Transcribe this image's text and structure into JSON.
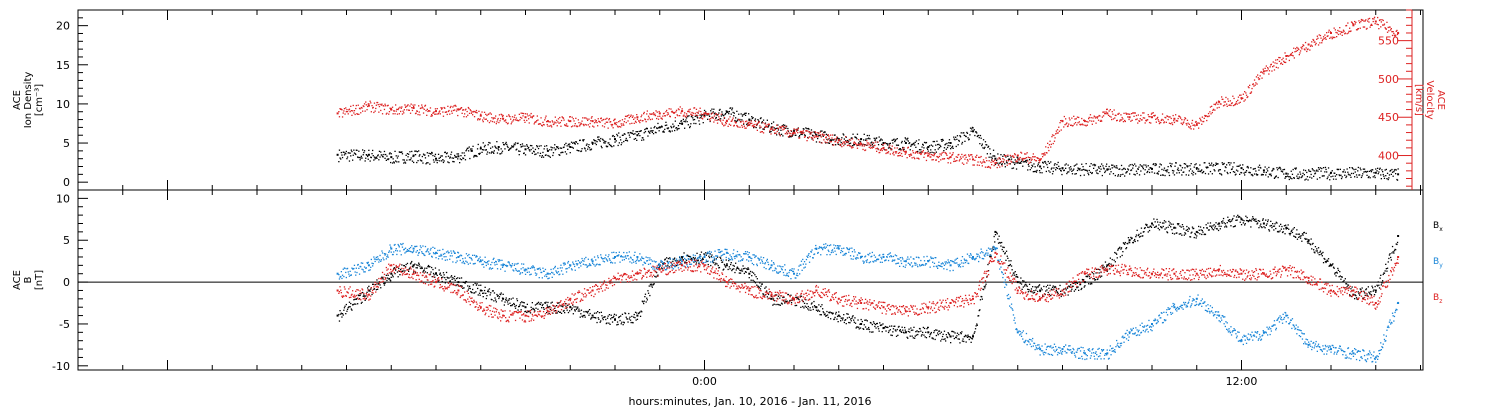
{
  "chart_data": [
    {
      "type": "scatter",
      "xlabel": "hours:minutes, Jan. 10, 2016 - Jan. 11, 2016",
      "x_ticks": [
        "0:00",
        "12:00"
      ],
      "left_axis": {
        "title_lines": [
          "ACE",
          "Ion Density",
          "[cm⁻³]"
        ],
        "ylim": [
          -1,
          22
        ],
        "ticks": [
          0,
          5,
          10,
          15,
          20
        ],
        "color": "#000000"
      },
      "right_axis": {
        "title_lines": [
          "ACE",
          "Velocity",
          "[km/s]"
        ],
        "ylim": [
          355,
          590
        ],
        "ticks": [
          400,
          450,
          500,
          550
        ],
        "color": "#dd2222"
      },
      "series": [
        {
          "color": "#000000",
          "axis": "left",
          "x_hours": [
            -8.2,
            -7.5,
            -7.0,
            -6.5,
            -6.0,
            -5.5,
            -5.2,
            -5.0,
            -4.6,
            -4.0,
            -3.5,
            -3.0,
            -2.5,
            -2.0,
            -1.5,
            -1.0,
            -0.5,
            0.0,
            0.5,
            1.0,
            1.5,
            2.0,
            2.5,
            3.0,
            3.5,
            4.0,
            4.5,
            5.0,
            5.5,
            6.0,
            6.5,
            7.0,
            7.5,
            8.0,
            9.0,
            10.0,
            11.0,
            12.0,
            12.5,
            13.0,
            14.0,
            15.0,
            15.5
          ],
          "y": [
            3.5,
            3.5,
            3.2,
            3.4,
            3.0,
            3.3,
            4.0,
            4.3,
            4.5,
            4.2,
            4.0,
            4.5,
            5.0,
            5.5,
            6.0,
            7.0,
            7.5,
            8.5,
            9.0,
            8.0,
            7.0,
            6.5,
            6.0,
            5.5,
            5.5,
            5.0,
            5.0,
            4.5,
            5.0,
            6.5,
            3.0,
            2.5,
            2.0,
            1.8,
            1.6,
            1.7,
            1.8,
            1.8,
            1.5,
            1.1,
            1.2,
            1.2,
            1.0
          ]
        },
        {
          "color": "#dd2222",
          "axis": "right",
          "x_hours": [
            -8.2,
            -7.5,
            -7.0,
            -6.5,
            -6.0,
            -5.5,
            -5.0,
            -4.5,
            -4.0,
            -3.5,
            -3.0,
            -2.5,
            -2.0,
            -1.5,
            -1.0,
            -0.5,
            0.0,
            0.5,
            1.0,
            1.5,
            2.0,
            2.5,
            3.0,
            3.5,
            4.0,
            4.5,
            5.0,
            5.5,
            6.0,
            6.5,
            7.0,
            7.5,
            8.0,
            8.5,
            9.0,
            9.5,
            10.0,
            10.5,
            11.0,
            11.5,
            12.0,
            12.5,
            13.0,
            13.5,
            14.0,
            14.5,
            15.0,
            15.5
          ],
          "y": [
            455,
            465,
            460,
            462,
            458,
            460,
            452,
            448,
            450,
            445,
            445,
            445,
            442,
            450,
            455,
            458,
            455,
            445,
            440,
            435,
            430,
            425,
            420,
            415,
            410,
            405,
            400,
            398,
            395,
            390,
            400,
            395,
            445,
            445,
            455,
            450,
            450,
            448,
            440,
            470,
            475,
            510,
            530,
            545,
            560,
            570,
            575,
            560
          ]
        }
      ]
    },
    {
      "type": "scatter",
      "xlabel": "hours:minutes, Jan. 10, 2016 - Jan. 11, 2016",
      "x_ticks": [
        "0:00",
        "12:00"
      ],
      "left_axis": {
        "title_lines": [
          "ACE",
          "B",
          "[nT]"
        ],
        "ylim": [
          -10.5,
          11
        ],
        "ticks": [
          -10,
          -5,
          0,
          5,
          10
        ]
      },
      "zero_line": 0,
      "legend": [
        {
          "main": "B",
          "sub": "x",
          "color": "#000000"
        },
        {
          "main": "B",
          "sub": "y",
          "color": "#1a86d8"
        },
        {
          "main": "B",
          "sub": "z",
          "color": "#dd2222"
        }
      ],
      "series": [
        {
          "color": "#000000",
          "x_hours": [
            -8.2,
            -7.5,
            -7.0,
            -6.5,
            -6.0,
            -5.5,
            -5.0,
            -4.5,
            -4.0,
            -3.5,
            -3.0,
            -2.5,
            -2.0,
            -1.5,
            -1.0,
            -0.5,
            0.0,
            0.5,
            1.0,
            1.5,
            2.0,
            2.5,
            3.0,
            3.5,
            4.0,
            4.5,
            5.0,
            5.5,
            6.0,
            6.5,
            7.0,
            7.5,
            8.0,
            8.5,
            9.0,
            9.5,
            10.0,
            10.5,
            11.0,
            11.5,
            12.0,
            12.5,
            13.0,
            13.5,
            14.0,
            14.5,
            15.0,
            15.5
          ],
          "y": [
            -4.0,
            -1.0,
            1.0,
            2.0,
            1.0,
            0.0,
            -1.0,
            -2.0,
            -3.0,
            -3.0,
            -3.0,
            -4.0,
            -4.5,
            -4.0,
            2.0,
            3.0,
            3.0,
            2.0,
            1.0,
            -2.0,
            -2.0,
            -3.0,
            -4.0,
            -5.0,
            -5.5,
            -6.0,
            -6.0,
            -6.5,
            -6.5,
            6.0,
            0.0,
            -1.0,
            -1.0,
            0.0,
            2.0,
            5.0,
            7.0,
            6.5,
            6.0,
            7.0,
            7.5,
            7.0,
            6.5,
            5.0,
            2.0,
            -1.5,
            -1.0,
            5.5
          ]
        },
        {
          "color": "#1a86d8",
          "x_hours": [
            -8.2,
            -7.5,
            -7.0,
            -6.5,
            -6.0,
            -5.5,
            -5.0,
            -4.5,
            -4.0,
            -3.5,
            -3.0,
            -2.5,
            -2.0,
            -1.5,
            -1.0,
            -0.5,
            0.0,
            0.5,
            1.0,
            1.5,
            2.0,
            2.5,
            3.0,
            3.5,
            4.0,
            4.5,
            5.0,
            5.5,
            6.0,
            6.5,
            7.0,
            7.5,
            8.0,
            8.5,
            9.0,
            9.5,
            10.0,
            10.5,
            11.0,
            11.5,
            12.0,
            12.5,
            13.0,
            13.5,
            14.0,
            14.5,
            15.0,
            15.5
          ],
          "y": [
            1.0,
            2.0,
            4.0,
            4.0,
            3.5,
            3.0,
            2.5,
            2.0,
            1.5,
            1.0,
            2.0,
            2.5,
            3.0,
            3.0,
            2.0,
            2.5,
            3.0,
            3.5,
            3.0,
            2.0,
            1.0,
            4.0,
            4.0,
            3.0,
            3.0,
            2.5,
            2.5,
            2.0,
            3.0,
            4.0,
            -6.0,
            -8.0,
            -8.0,
            -8.5,
            -8.5,
            -6.0,
            -5.0,
            -3.0,
            -2.0,
            -4.0,
            -7.0,
            -6.0,
            -4.0,
            -7.5,
            -8.0,
            -8.5,
            -9.0,
            -2.5
          ]
        },
        {
          "color": "#dd2222",
          "x_hours": [
            -8.2,
            -7.5,
            -7.0,
            -6.5,
            -6.0,
            -5.5,
            -5.0,
            -4.5,
            -4.0,
            -3.5,
            -3.0,
            -2.5,
            -2.0,
            -1.5,
            -1.0,
            -0.5,
            0.0,
            0.5,
            1.0,
            1.5,
            2.0,
            2.5,
            3.0,
            3.5,
            4.0,
            4.5,
            5.0,
            5.5,
            6.0,
            6.5,
            7.0,
            7.5,
            8.0,
            8.5,
            9.0,
            9.5,
            10.0,
            10.5,
            11.0,
            11.5,
            12.0,
            12.5,
            13.0,
            13.5,
            14.0,
            14.5,
            15.0,
            15.5
          ],
          "y": [
            -1.0,
            -1.5,
            2.0,
            1.0,
            0.0,
            -1.0,
            -3.0,
            -4.0,
            -4.0,
            -3.5,
            -2.0,
            -1.0,
            0.5,
            1.0,
            1.5,
            2.0,
            2.0,
            0.0,
            -1.0,
            -1.5,
            -2.0,
            -1.0,
            -2.0,
            -2.5,
            -3.0,
            -3.5,
            -3.0,
            -2.5,
            -2.0,
            3.5,
            -1.0,
            -2.0,
            -1.0,
            1.0,
            1.5,
            1.5,
            1.0,
            1.0,
            1.0,
            1.5,
            1.0,
            1.0,
            1.5,
            0.5,
            -1.0,
            -1.0,
            -2.5,
            3.0
          ]
        }
      ]
    }
  ]
}
